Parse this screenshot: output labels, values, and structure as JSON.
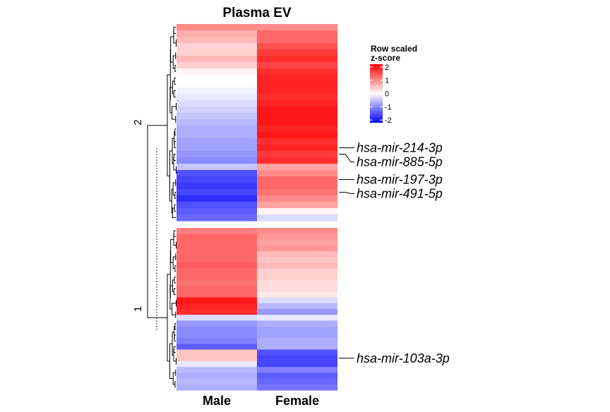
{
  "chart_data": {
    "type": "heatmap",
    "title": "Plasma EV",
    "columns": [
      "Male",
      "Female"
    ],
    "legend": {
      "title_lines": [
        "Row scaled",
        "z-score"
      ],
      "ticks": [
        2,
        1,
        0,
        -1,
        -2
      ],
      "range": [
        -2.2,
        2.2
      ],
      "colors": {
        "low": "#0000ff",
        "mid": "#ffffff",
        "high": "#ff0000"
      }
    },
    "clusters": [
      {
        "label": "2",
        "rows": [
          {
            "name": "",
            "values": [
              1.0,
              1.0
            ]
          },
          {
            "name": "",
            "values": [
              0.7,
              1.3
            ]
          },
          {
            "name": "",
            "values": [
              0.6,
              1.3
            ]
          },
          {
            "name": "",
            "values": [
              0.4,
              1.5
            ]
          },
          {
            "name": "",
            "values": [
              0.4,
              1.7
            ]
          },
          {
            "name": "",
            "values": [
              0.6,
              1.8
            ]
          },
          {
            "name": "",
            "values": [
              0.4,
              1.6
            ]
          },
          {
            "name": "",
            "values": [
              0.1,
              1.8
            ]
          },
          {
            "name": "",
            "values": [
              0.0,
              1.9
            ]
          },
          {
            "name": "",
            "values": [
              0.0,
              1.9
            ]
          },
          {
            "name": "",
            "values": [
              -0.1,
              1.9
            ]
          },
          {
            "name": "",
            "values": [
              -0.2,
              1.8
            ]
          },
          {
            "name": "",
            "values": [
              -0.3,
              1.9
            ]
          },
          {
            "name": "",
            "values": [
              -0.4,
              2.0
            ]
          },
          {
            "name": "",
            "values": [
              -0.5,
              2.0
            ]
          },
          {
            "name": "",
            "values": [
              -0.6,
              2.0
            ]
          },
          {
            "name": "",
            "values": [
              -0.7,
              1.9
            ]
          },
          {
            "name": "",
            "values": [
              -0.7,
              2.0
            ]
          },
          {
            "name": "",
            "values": [
              -0.8,
              1.8
            ]
          },
          {
            "name": "hsa-mir-214-3p",
            "values": [
              -0.8,
              1.9
            ]
          },
          {
            "name": "hsa-mir-885-5p",
            "values": [
              -0.9,
              1.7
            ]
          },
          {
            "name": "",
            "values": [
              -1.0,
              1.8
            ]
          },
          {
            "name": "",
            "values": [
              -0.5,
              0.8
            ]
          },
          {
            "name": "",
            "values": [
              -1.5,
              1.0
            ]
          },
          {
            "name": "hsa-mir-197-3p",
            "values": [
              -1.6,
              1.3
            ]
          },
          {
            "name": "",
            "values": [
              -1.7,
              1.3
            ]
          },
          {
            "name": "hsa-mir-491-5p",
            "values": [
              -1.6,
              1.2
            ]
          },
          {
            "name": "",
            "values": [
              -1.8,
              1.0
            ]
          },
          {
            "name": "",
            "values": [
              -1.5,
              0.8
            ]
          },
          {
            "name": "",
            "values": [
              -1.4,
              0.1
            ]
          },
          {
            "name": "",
            "values": [
              -1.3,
              -0.3
            ]
          }
        ]
      },
      {
        "label": "1",
        "rows": [
          {
            "name": "",
            "values": [
              1.1,
              1.0
            ]
          },
          {
            "name": "",
            "values": [
              1.3,
              0.9
            ]
          },
          {
            "name": "",
            "values": [
              1.3,
              0.8
            ]
          },
          {
            "name": "",
            "values": [
              1.3,
              0.9
            ]
          },
          {
            "name": "",
            "values": [
              1.3,
              0.6
            ]
          },
          {
            "name": "",
            "values": [
              1.3,
              0.5
            ]
          },
          {
            "name": "",
            "values": [
              1.4,
              0.6
            ]
          },
          {
            "name": "",
            "values": [
              1.3,
              0.4
            ]
          },
          {
            "name": "",
            "values": [
              1.3,
              0.4
            ]
          },
          {
            "name": "",
            "values": [
              1.2,
              0.3
            ]
          },
          {
            "name": "",
            "values": [
              1.3,
              0.3
            ]
          },
          {
            "name": "",
            "values": [
              1.3,
              0.2
            ]
          },
          {
            "name": "",
            "values": [
              2.0,
              -0.3
            ]
          },
          {
            "name": "",
            "values": [
              1.9,
              -0.6
            ]
          },
          {
            "name": "",
            "values": [
              1.8,
              -0.9
            ]
          },
          {
            "name": "",
            "values": [
              -0.3,
              -0.2
            ]
          },
          {
            "name": "",
            "values": [
              -0.9,
              -0.7
            ]
          },
          {
            "name": "",
            "values": [
              -1.0,
              -0.8
            ]
          },
          {
            "name": "",
            "values": [
              -1.0,
              -0.8
            ]
          },
          {
            "name": "",
            "values": [
              -1.1,
              -0.7
            ]
          },
          {
            "name": "",
            "values": [
              -1.4,
              -0.7
            ]
          },
          {
            "name": "",
            "values": [
              0.5,
              -1.5
            ]
          },
          {
            "name": "hsa-mir-103a-3p",
            "values": [
              0.5,
              -1.6
            ]
          },
          {
            "name": "",
            "values": [
              -0.2,
              -1.6
            ]
          },
          {
            "name": "",
            "values": [
              -0.6,
              -1.1
            ]
          },
          {
            "name": "",
            "values": [
              -0.7,
              -1.4
            ]
          },
          {
            "name": "",
            "values": [
              -0.6,
              -1.3
            ]
          },
          {
            "name": "",
            "values": [
              -0.7,
              -1.2
            ]
          }
        ]
      }
    ]
  }
}
